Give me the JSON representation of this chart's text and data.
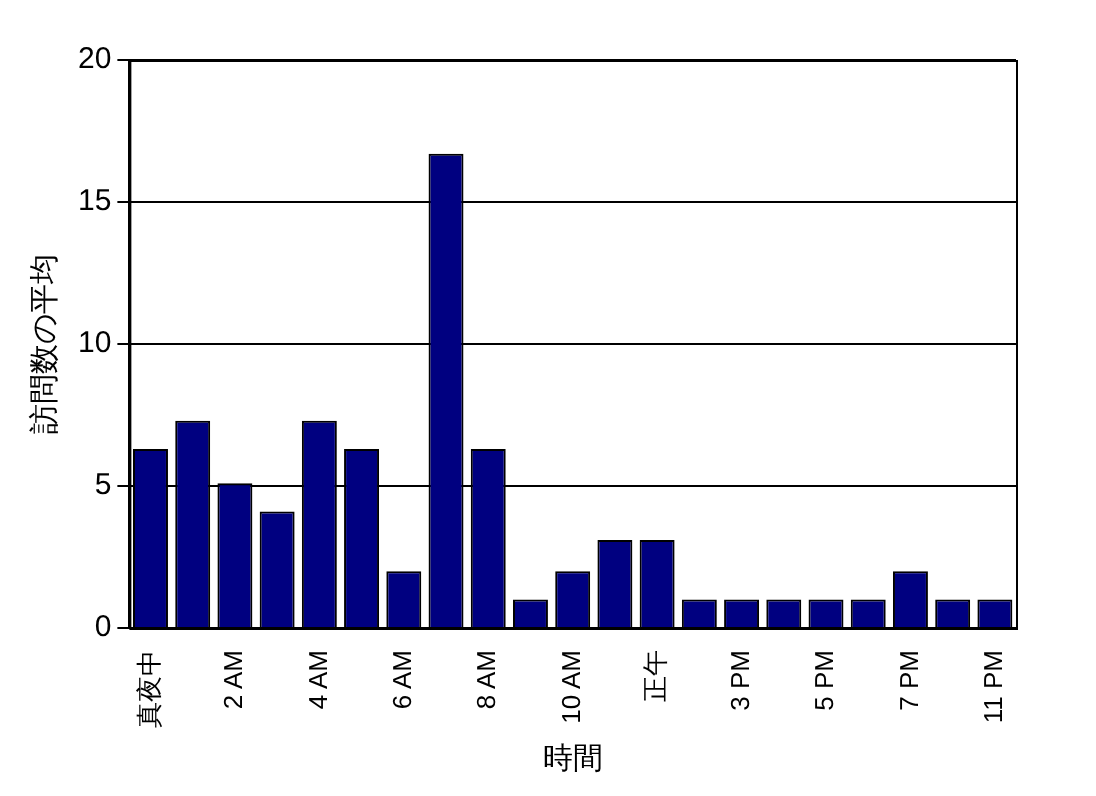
{
  "chart_data": {
    "type": "bar",
    "xlabel": "時間",
    "ylabel": "訪問数の平均",
    "categories": [
      "真夜中",
      null,
      "2 AM",
      null,
      "4 AM",
      null,
      "6 AM",
      null,
      "8 AM",
      null,
      "10 AM",
      null,
      "正午",
      null,
      "3 PM",
      null,
      "5 PM",
      null,
      "7 PM",
      null,
      "11 PM"
    ],
    "values": [
      6.3,
      7.3,
      5.1,
      4.1,
      7.3,
      6.3,
      2,
      16.7,
      6.3,
      1,
      2,
      3.1,
      3.1,
      1,
      1,
      1,
      1,
      1,
      2,
      1,
      1
    ],
    "color": "#000080",
    "ylim": [
      0,
      20
    ],
    "yticks": [
      0,
      5,
      10,
      15,
      20
    ],
    "grid": "y",
    "legend": false
  }
}
